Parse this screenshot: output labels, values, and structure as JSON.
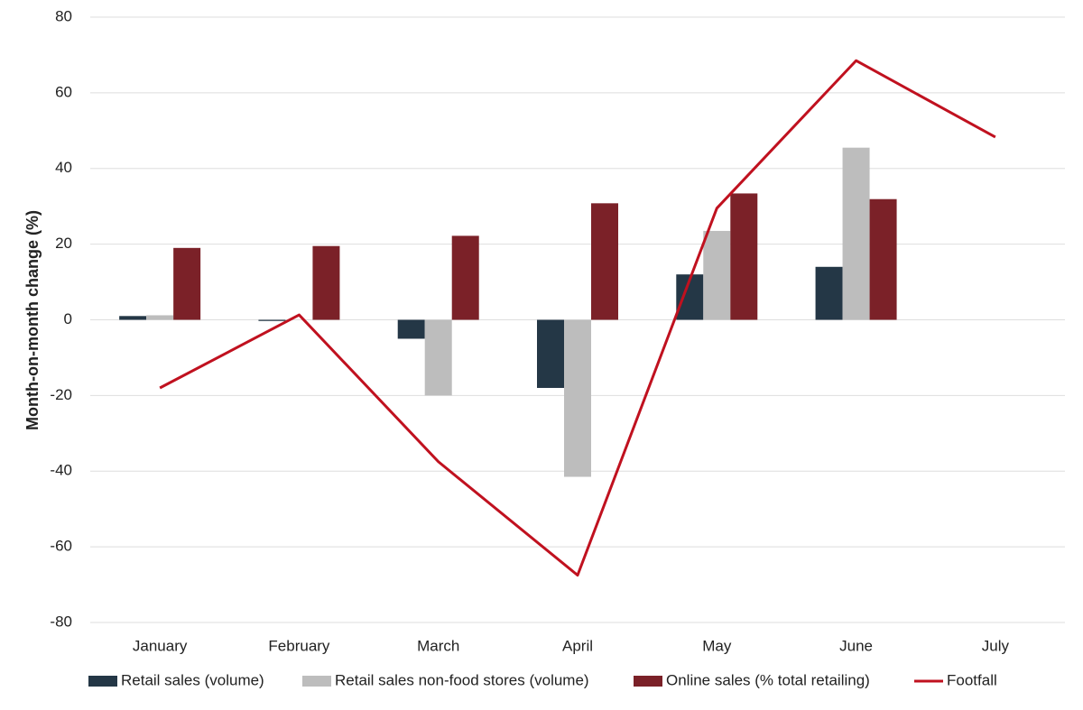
{
  "chart_data": {
    "type": "bar",
    "y_label": "Month-on-month change (%)",
    "categories": [
      "January",
      "February",
      "March",
      "April",
      "May",
      "June",
      "July"
    ],
    "series": [
      {
        "name": "Retail sales (volume)",
        "type": "bar",
        "color": "#243746",
        "values": [
          1,
          -0.3,
          -5,
          -18,
          12,
          14,
          null
        ]
      },
      {
        "name": "Retail sales non-food stores (volume)",
        "type": "bar",
        "color": "#bdbdbd",
        "values": [
          1.2,
          null,
          -20,
          -41.5,
          23.5,
          45.5,
          null
        ]
      },
      {
        "name": "Online sales (% total retailing)",
        "type": "bar",
        "color": "#7b2128",
        "values": [
          19,
          19.5,
          22.2,
          30.8,
          33.4,
          31.9,
          null
        ]
      },
      {
        "name": "Footfall",
        "type": "line",
        "color": "#c0111f",
        "values": [
          -18,
          1.3,
          -37.5,
          -67.5,
          29.5,
          68.5,
          48.3
        ]
      }
    ],
    "ylim": [
      -80,
      80
    ],
    "yticks": [
      -80,
      -60,
      -40,
      -20,
      0,
      20,
      40,
      60,
      80
    ],
    "grid": true,
    "legend": "bottom"
  }
}
